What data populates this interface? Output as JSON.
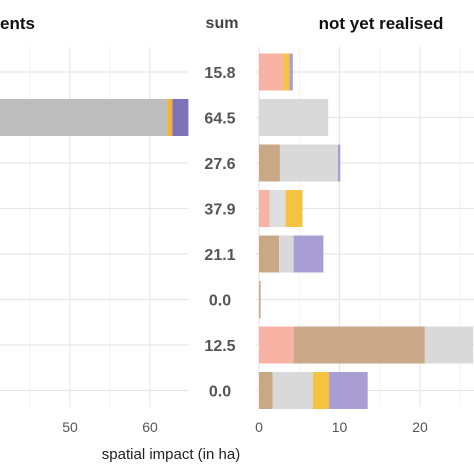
{
  "chart_data": [
    {
      "type": "bar",
      "orientation": "horizontal",
      "stacked": true,
      "title": "ents",
      "xlabel": "spatial impact (in ha)",
      "xlim": [
        20,
        66
      ],
      "xticks": [
        50,
        60
      ],
      "grid": true,
      "row_count": 8,
      "rows": [
        {
          "index": 1,
          "segments": [
            {
              "value": 62.2,
              "color": "#bdbdbd"
            },
            {
              "value": 0.6,
              "color": "#f5b335"
            },
            {
              "value": 2.0,
              "color": "#7e73b8"
            }
          ]
        }
      ]
    },
    {
      "type": "table",
      "title": "sum",
      "values": [
        "15.8",
        "64.5",
        "27.6",
        "37.9",
        "21.1",
        "0.0",
        "12.5",
        "0.0"
      ]
    },
    {
      "type": "bar",
      "orientation": "horizontal",
      "stacked": true,
      "title": "not yet realised",
      "xlim": [
        0,
        26
      ],
      "xticks": [
        0,
        10,
        20
      ],
      "grid": true,
      "rows": [
        {
          "segments": [
            {
              "value": 3.0,
              "color": "#f9b3a4"
            },
            {
              "value": 0.8,
              "color": "#f5c342"
            },
            {
              "value": 0.4,
              "color": "#a99ed3"
            }
          ]
        },
        {
          "segments": [
            {
              "value": 8.6,
              "color": "#d9d9d9"
            }
          ]
        },
        {
          "segments": [
            {
              "value": 2.6,
              "color": "#c9a888"
            },
            {
              "value": 7.2,
              "color": "#d9d9d9"
            },
            {
              "value": 0.3,
              "color": "#a99ed3"
            }
          ]
        },
        {
          "segments": [
            {
              "value": 1.3,
              "color": "#f9b3a4"
            },
            {
              "value": 2.0,
              "color": "#dedede"
            },
            {
              "value": 2.1,
              "color": "#f5c342"
            }
          ]
        },
        {
          "segments": [
            {
              "value": 2.5,
              "color": "#c9a888"
            },
            {
              "value": 1.8,
              "color": "#d9d9d9"
            },
            {
              "value": 3.7,
              "color": "#a99ed3"
            }
          ]
        },
        {
          "segments": [
            {
              "value": 0.2,
              "color": "#c9a888"
            }
          ]
        },
        {
          "segments": [
            {
              "value": 4.3,
              "color": "#f9b3a4"
            },
            {
              "value": 16.3,
              "color": "#c9a888"
            },
            {
              "value": 6.0,
              "color": "#d9d9d9"
            }
          ]
        },
        {
          "segments": [
            {
              "value": 1.7,
              "color": "#c9a888"
            },
            {
              "value": 5.0,
              "color": "#d9d9d9"
            },
            {
              "value": 2.0,
              "color": "#f5c342"
            },
            {
              "value": 4.8,
              "color": "#a99ed3"
            }
          ]
        }
      ]
    }
  ]
}
